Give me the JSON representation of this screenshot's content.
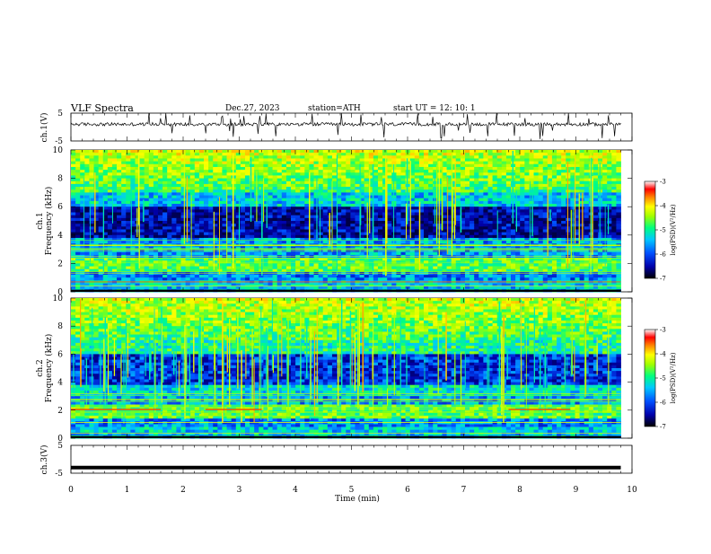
{
  "header": {
    "title": "VLF  Spectra",
    "date": "Dec.27, 2023",
    "station": "station=ATH",
    "start_ut": "start  UT  =    12: 10: 1"
  },
  "chart_data": [
    {
      "type": "line",
      "id": "ch1-voltage",
      "ylabel": "ch.1(V)",
      "ylim": [
        -5,
        5
      ],
      "yticks": [
        "5",
        "-5"
      ],
      "xlim": [
        0,
        10
      ],
      "approx_level_v": 1.0,
      "x_range_min": [
        0,
        9.8
      ]
    },
    {
      "type": "heatmap",
      "id": "ch1-spectrogram",
      "ylabel": "ch.1\nFrequency  (kHz)",
      "ylim_khz": [
        0,
        10
      ],
      "yticks": [
        "0",
        "2",
        "4",
        "6",
        "8",
        "10"
      ],
      "xlim_min": [
        0,
        10
      ],
      "data_end_min": 9.8,
      "colorbar": {
        "label": "log(PSD)(V²/Hz)",
        "range": [
          -7,
          -3
        ],
        "ticks": [
          "-3",
          "-4",
          "-5",
          "-6",
          "-7"
        ]
      }
    },
    {
      "type": "heatmap",
      "id": "ch2-spectrogram",
      "ylabel": "ch.2\nFrequency  (kHz)",
      "ylim_khz": [
        0,
        10
      ],
      "yticks": [
        "0",
        "2",
        "4",
        "6",
        "8",
        "10"
      ],
      "xlim_min": [
        0,
        10
      ],
      "data_end_min": 9.8,
      "colorbar": {
        "label": "log(PSD)(V²/Hz)",
        "range": [
          -7,
          -3
        ],
        "ticks": [
          "-3",
          "-4",
          "-5",
          "-6",
          "-7"
        ]
      }
    },
    {
      "type": "line",
      "id": "ch3-voltage",
      "ylabel": "ch.3(V)",
      "ylim": [
        -5,
        5
      ],
      "yticks": [
        "5",
        "-5"
      ],
      "xlim": [
        0,
        10
      ],
      "approx_level_v": -3.0,
      "x_range_min": [
        0,
        9.8
      ]
    }
  ],
  "xaxis": {
    "label": "Time  (min)",
    "ticks": [
      "0",
      "1",
      "2",
      "3",
      "4",
      "5",
      "6",
      "7",
      "8",
      "9",
      "10"
    ]
  },
  "colors": {
    "colormap": [
      "#000044",
      "#0000aa",
      "#0050ff",
      "#00c8ff",
      "#00ff80",
      "#a0ff00",
      "#ffff00",
      "#ff8000",
      "#ff0000",
      "#ffffff"
    ]
  }
}
